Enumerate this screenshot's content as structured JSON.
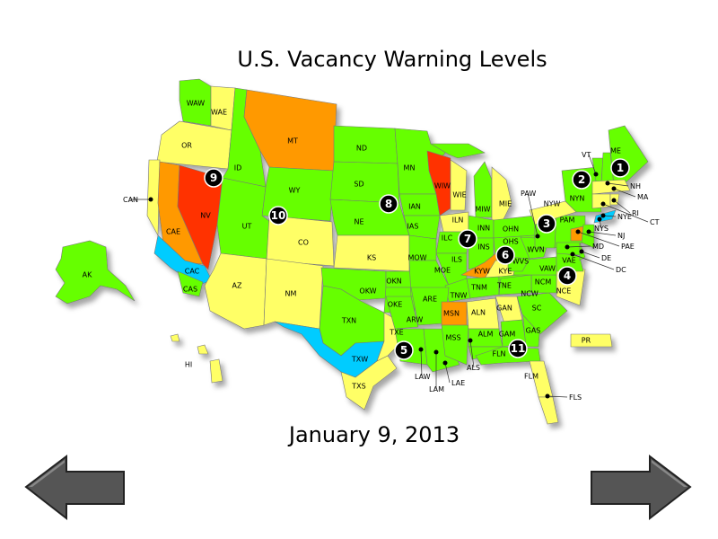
{
  "title": "U.S. Vacancy Warning Levels",
  "date": "January 9, 2013",
  "level_colors": {
    "green": "#66ff00",
    "yellow": "#ffff66",
    "orange": "#ff9900",
    "red": "#ff3300",
    "blue": "#00ccff"
  },
  "regions": [
    {
      "code": "WAW",
      "level": "green"
    },
    {
      "code": "WAE",
      "level": "yellow"
    },
    {
      "code": "OR",
      "level": "yellow"
    },
    {
      "code": "ID",
      "level": "green"
    },
    {
      "code": "MT",
      "level": "orange"
    },
    {
      "code": "WY",
      "level": "green"
    },
    {
      "code": "CAN",
      "level": "yellow"
    },
    {
      "code": "CAE",
      "level": "orange"
    },
    {
      "code": "NV",
      "level": "red"
    },
    {
      "code": "CAC",
      "level": "blue"
    },
    {
      "code": "CAS",
      "level": "green"
    },
    {
      "code": "UT",
      "level": "green"
    },
    {
      "code": "CO",
      "level": "yellow"
    },
    {
      "code": "AZ",
      "level": "yellow"
    },
    {
      "code": "NM",
      "level": "yellow"
    },
    {
      "code": "ND",
      "level": "green"
    },
    {
      "code": "SD",
      "level": "green"
    },
    {
      "code": "NE",
      "level": "green"
    },
    {
      "code": "KS",
      "level": "yellow"
    },
    {
      "code": "OKW",
      "level": "green"
    },
    {
      "code": "OKN",
      "level": "green"
    },
    {
      "code": "OKE",
      "level": "green"
    },
    {
      "code": "TXN",
      "level": "green"
    },
    {
      "code": "TXW",
      "level": "blue"
    },
    {
      "code": "TXE",
      "level": "yellow"
    },
    {
      "code": "TXS",
      "level": "yellow"
    },
    {
      "code": "MN",
      "level": "green"
    },
    {
      "code": "IAN",
      "level": "green"
    },
    {
      "code": "IAS",
      "level": "green"
    },
    {
      "code": "WIW",
      "level": "red"
    },
    {
      "code": "WIE",
      "level": "yellow"
    },
    {
      "code": "MIW",
      "level": "green"
    },
    {
      "code": "MIE",
      "level": "yellow"
    },
    {
      "code": "ILN",
      "level": "yellow"
    },
    {
      "code": "ILC",
      "level": "green"
    },
    {
      "code": "ILS",
      "level": "green"
    },
    {
      "code": "MOW",
      "level": "green"
    },
    {
      "code": "MOE",
      "level": "green"
    },
    {
      "code": "INN",
      "level": "green"
    },
    {
      "code": "INS",
      "level": "green"
    },
    {
      "code": "OHN",
      "level": "green"
    },
    {
      "code": "OHS",
      "level": "green"
    },
    {
      "code": "KYW",
      "level": "orange"
    },
    {
      "code": "KYE",
      "level": "yellow"
    },
    {
      "code": "TNW",
      "level": "green"
    },
    {
      "code": "TNM",
      "level": "green"
    },
    {
      "code": "TNE",
      "level": "green"
    },
    {
      "code": "ARE",
      "level": "green"
    },
    {
      "code": "ARW",
      "level": "green"
    },
    {
      "code": "LAW",
      "level": "green"
    },
    {
      "code": "LAM",
      "level": "orange"
    },
    {
      "code": "LAE",
      "level": "green"
    },
    {
      "code": "MSN",
      "level": "orange"
    },
    {
      "code": "MSS",
      "level": "green"
    },
    {
      "code": "ALN",
      "level": "yellow"
    },
    {
      "code": "ALM",
      "level": "green"
    },
    {
      "code": "ALS",
      "level": "green"
    },
    {
      "code": "GAN",
      "level": "yellow"
    },
    {
      "code": "GAM",
      "level": "green"
    },
    {
      "code": "GAS",
      "level": "green"
    },
    {
      "code": "FLN",
      "level": "green"
    },
    {
      "code": "FLM",
      "level": "yellow"
    },
    {
      "code": "FLS",
      "level": "yellow"
    },
    {
      "code": "SC",
      "level": "green"
    },
    {
      "code": "NCE",
      "level": "yellow"
    },
    {
      "code": "NCM",
      "level": "green"
    },
    {
      "code": "NCW",
      "level": "green"
    },
    {
      "code": "VAW",
      "level": "green"
    },
    {
      "code": "VAE",
      "level": "green"
    },
    {
      "code": "WVN",
      "level": "green"
    },
    {
      "code": "WVS",
      "level": "green"
    },
    {
      "code": "PAW",
      "level": "green"
    },
    {
      "code": "PAM",
      "level": "green"
    },
    {
      "code": "PAE",
      "level": "orange"
    },
    {
      "code": "NYW",
      "level": "yellow"
    },
    {
      "code": "NYN",
      "level": "green"
    },
    {
      "code": "NYE",
      "level": "blue"
    },
    {
      "code": "NYS",
      "level": "blue"
    },
    {
      "code": "NJ",
      "level": "green"
    },
    {
      "code": "MD",
      "level": "green"
    },
    {
      "code": "DE",
      "level": "green"
    },
    {
      "code": "DC",
      "level": "green"
    },
    {
      "code": "VT",
      "level": "green"
    },
    {
      "code": "NH",
      "level": "green"
    },
    {
      "code": "ME",
      "level": "green"
    },
    {
      "code": "MA",
      "level": "yellow"
    },
    {
      "code": "CT",
      "level": "yellow"
    },
    {
      "code": "RI",
      "level": "yellow"
    },
    {
      "code": "AK",
      "level": "green"
    },
    {
      "code": "HI",
      "level": "yellow"
    },
    {
      "code": "PR",
      "level": "yellow"
    }
  ],
  "markers": [
    "1",
    "2",
    "3",
    "4",
    "5",
    "6",
    "7",
    "8",
    "9",
    "10",
    "11"
  ],
  "nav": {
    "prev_icon": "arrow-left-icon",
    "next_icon": "arrow-right-icon"
  }
}
